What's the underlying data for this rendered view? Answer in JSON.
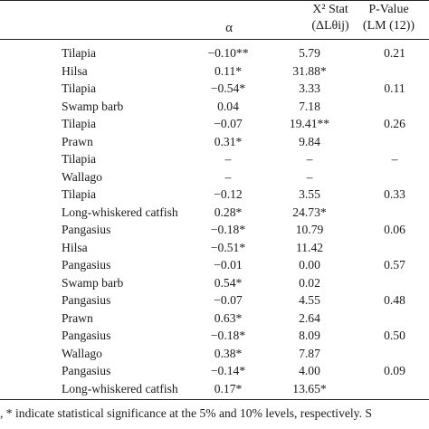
{
  "table": {
    "header": {
      "alpha": "α",
      "x2_line1": "X² Stat",
      "x2_line2": "(ΔLθij)",
      "p_line1": "P-Value",
      "p_line2": "(LM (12))"
    },
    "rows": [
      {
        "species": "Tilapia",
        "alpha": "−0.10**",
        "x2": "5.79",
        "p": "0.21"
      },
      {
        "species": "Hilsa",
        "alpha": "0.11*",
        "x2": "31.88*",
        "p": ""
      },
      {
        "species": "Tilapia",
        "alpha": "−0.54*",
        "x2": "3.33",
        "p": "0.11"
      },
      {
        "species": "Swamp barb",
        "alpha": "0.04",
        "x2": "7.18",
        "p": ""
      },
      {
        "species": "Tilapia",
        "alpha": "−0.07",
        "x2": "19.41**",
        "p": "0.26"
      },
      {
        "species": "Prawn",
        "alpha": "0.31*",
        "x2": "9.84",
        "p": ""
      },
      {
        "species": "Tilapia",
        "alpha": "–",
        "x2": "–",
        "p": "–"
      },
      {
        "species": "Wallago",
        "alpha": "–",
        "x2": "–",
        "p": ""
      },
      {
        "species": "Tilapia",
        "alpha": "−0.12",
        "x2": "3.55",
        "p": "0.33"
      },
      {
        "species": "Long-whiskered catfish",
        "alpha": "0.28*",
        "x2": "24.73*",
        "p": ""
      },
      {
        "species": "Pangasius",
        "alpha": "−0.18*",
        "x2": "10.79",
        "p": "0.06"
      },
      {
        "species": "Hilsa",
        "alpha": "−0.51*",
        "x2": "11.42",
        "p": ""
      },
      {
        "species": "Pangasius",
        "alpha": "−0.01",
        "x2": "0.00",
        "p": "0.57"
      },
      {
        "species": "Swamp barb",
        "alpha": "0.54*",
        "x2": "0.02",
        "p": ""
      },
      {
        "species": "Pangasius",
        "alpha": "−0.07",
        "x2": "4.55",
        "p": "0.48"
      },
      {
        "species": "Prawn",
        "alpha": "0.63*",
        "x2": "2.64",
        "p": ""
      },
      {
        "species": "Pangasius",
        "alpha": "−0.18*",
        "x2": "8.09",
        "p": "0.50"
      },
      {
        "species": "Wallago",
        "alpha": "0.38*",
        "x2": "7.87",
        "p": ""
      },
      {
        "species": "Pangasius",
        "alpha": "−0.14*",
        "x2": "4.00",
        "p": "0.09"
      },
      {
        "species": "Long-whiskered catfish",
        "alpha": "0.17*",
        "x2": "13.65*",
        "p": ""
      }
    ],
    "footnote": ", * indicate statistical significance at the 5% and 10% levels, respectively. S"
  }
}
